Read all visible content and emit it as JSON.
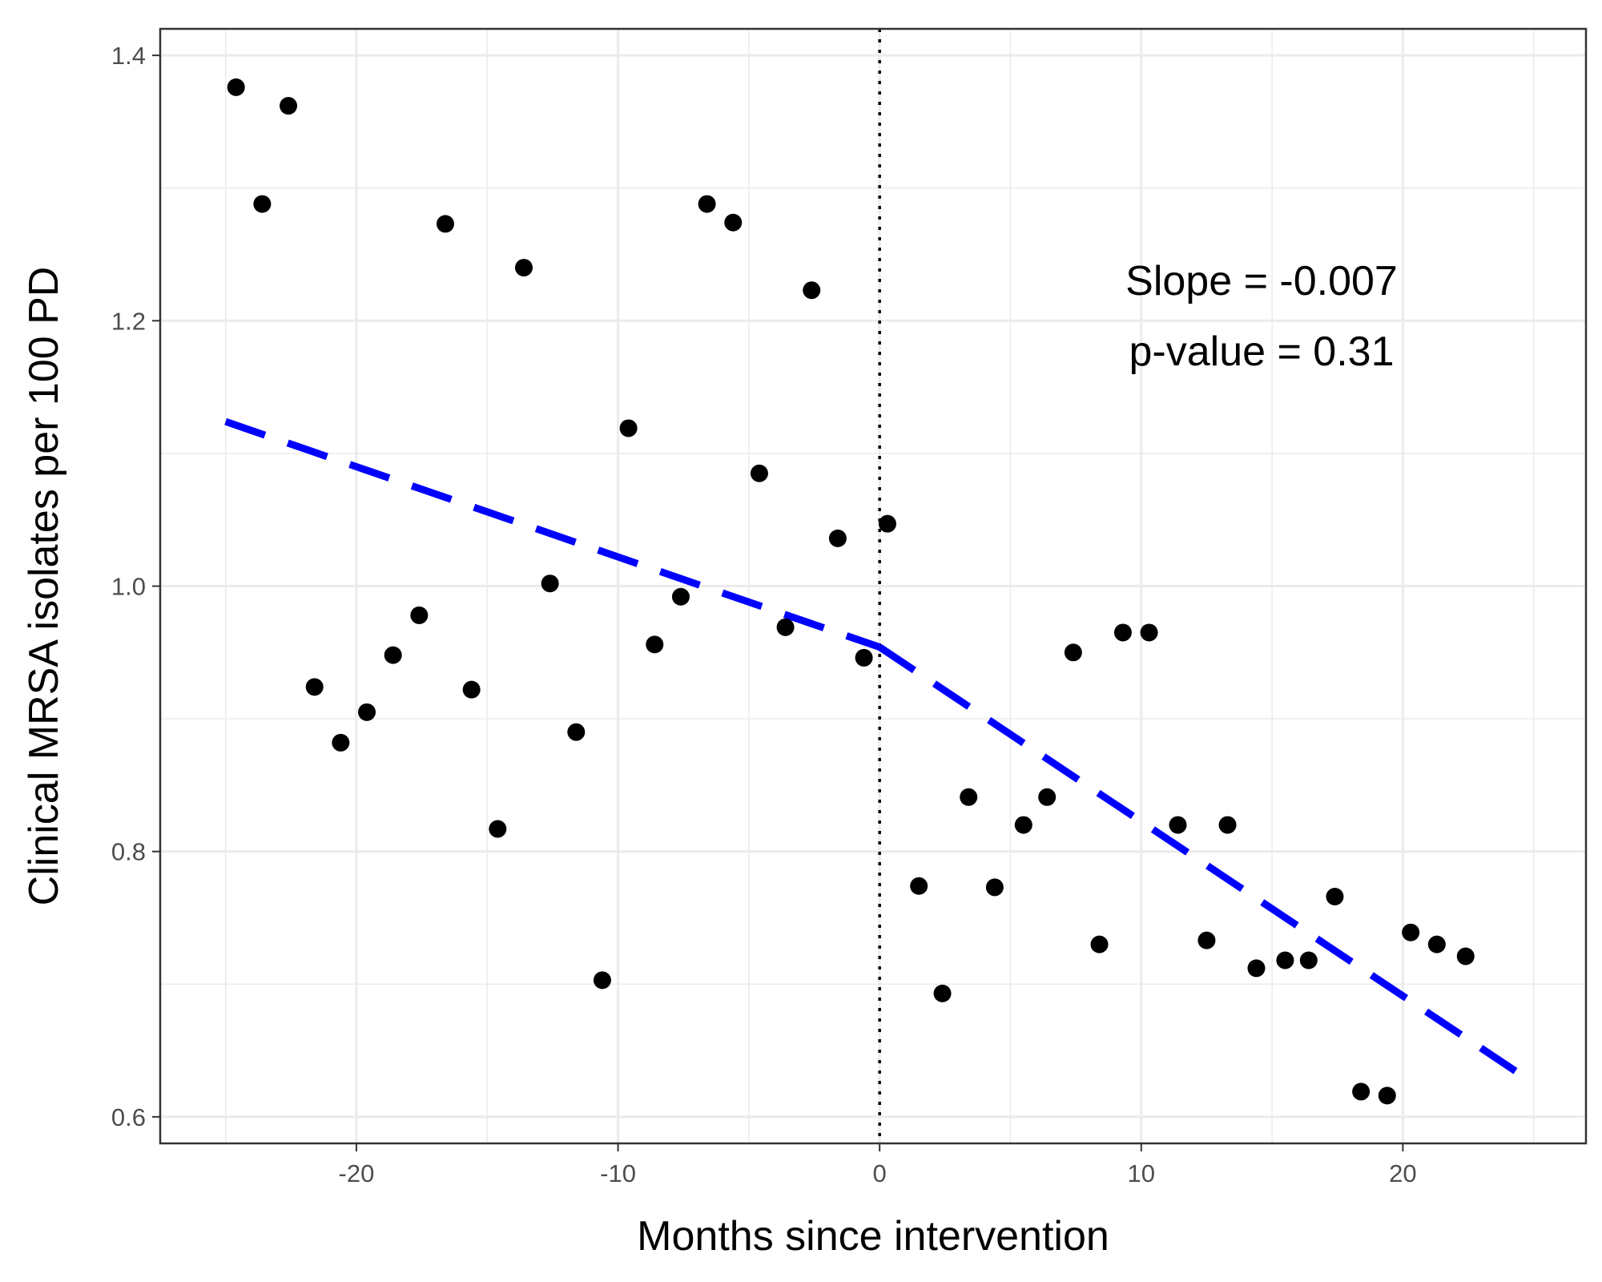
{
  "chart_data": {
    "type": "scatter",
    "xlabel": "Months since intervention",
    "ylabel": "Clinical MRSA isolates per 100 PD",
    "xlim": [
      -27.5,
      27
    ],
    "ylim": [
      0.58,
      1.42
    ],
    "x_ticks": [
      -20,
      -10,
      0,
      10,
      20
    ],
    "y_ticks": [
      0.6,
      0.8,
      1.0,
      1.2,
      1.4
    ],
    "x_tick_labels": [
      "-20",
      "-10",
      "0",
      "10",
      "20"
    ],
    "y_tick_labels": [
      "0.6",
      "0.8",
      "1.0",
      "1.2",
      "1.4"
    ],
    "grid": true,
    "intervention_line_x": 0,
    "annotations": [
      "Slope = -0.007",
      "p-value = 0.31"
    ],
    "points": {
      "x": [
        -24.6,
        -23.6,
        -22.6,
        -21.6,
        -20.6,
        -19.6,
        -18.6,
        -17.6,
        -16.6,
        -15.6,
        -14.6,
        -13.6,
        -12.6,
        -11.6,
        -10.6,
        -9.6,
        -8.6,
        -7.6,
        -6.6,
        -5.6,
        -4.6,
        -3.6,
        -2.6,
        -1.6,
        -0.6,
        0.3,
        1.5,
        2.4,
        3.4,
        4.4,
        5.5,
        6.4,
        7.4,
        8.4,
        9.3,
        10.3,
        11.4,
        12.5,
        13.3,
        14.4,
        15.5,
        16.4,
        17.4,
        18.4,
        19.4,
        20.3,
        21.3,
        22.4
      ],
      "y": [
        1.376,
        1.288,
        1.362,
        0.924,
        0.882,
        0.905,
        0.948,
        0.978,
        1.273,
        0.922,
        0.817,
        1.24,
        1.002,
        0.89,
        0.703,
        1.119,
        0.956,
        0.992,
        1.288,
        1.274,
        1.085,
        0.969,
        1.223,
        1.036,
        0.946,
        1.047,
        0.774,
        0.693,
        0.841,
        0.773,
        0.82,
        0.841,
        0.95,
        0.73,
        0.965,
        0.965,
        0.82,
        0.733,
        0.82,
        0.712,
        0.718,
        0.718,
        0.766,
        0.619,
        0.616,
        0.739,
        0.73,
        0.721
      ]
    },
    "trend_segments": [
      {
        "x": [
          -25,
          0
        ],
        "y": [
          1.124,
          0.954
        ]
      },
      {
        "x": [
          0,
          24.8
        ],
        "y": [
          0.954,
          0.628
        ]
      }
    ],
    "colors": {
      "points": "#000000",
      "trend": "#0000ff",
      "grid": "#ebebeb",
      "vline": "#000000"
    }
  }
}
